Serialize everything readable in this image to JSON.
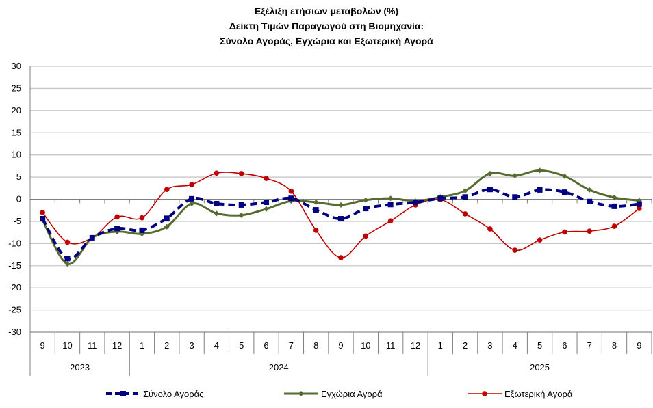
{
  "chart_data": {
    "type": "line",
    "title": [
      "Εξέλιξη ετήσιων μεταβολών (%)",
      "Δείκτη Τιμών Παραγωγού στη Βιομηχανία:",
      "Σύνολο Αγοράς, Εγχώρια και Εξωτερική Αγορά"
    ],
    "categories": [
      "9",
      "10",
      "11",
      "12",
      "1",
      "2",
      "3",
      "4",
      "5",
      "6",
      "7",
      "8",
      "9",
      "10",
      "11",
      "12",
      "1",
      "2",
      "3",
      "4",
      "5",
      "6",
      "7",
      "8",
      "9"
    ],
    "years": [
      {
        "label": "2023",
        "span": 4
      },
      {
        "label": "2024",
        "span": 12
      },
      {
        "label": "2025",
        "span": 9
      }
    ],
    "ylim": [
      -30,
      30
    ],
    "yticks": [
      30,
      25,
      20,
      15,
      10,
      5,
      0,
      -5,
      -10,
      -15,
      -20,
      -25,
      -30
    ],
    "grid": true,
    "legend": "bottom",
    "series": [
      {
        "name": "Σύνολο Αγοράς",
        "color": "#000080",
        "style": "dashed",
        "marker": "square",
        "values": [
          -4.4,
          -13.4,
          -8.7,
          -6.6,
          -7.0,
          -4.3,
          0.1,
          -1.0,
          -1.3,
          -0.7,
          0.2,
          -2.4,
          -4.4,
          -2.1,
          -1.2,
          -0.7,
          0.2,
          0.5,
          2.2,
          0.5,
          2.1,
          1.6,
          -0.5,
          -1.6,
          -1.1
        ]
      },
      {
        "name": "Εγχώρια Αγορά",
        "color": "#556B2F",
        "style": "solid",
        "marker": "diamond",
        "values": [
          -4.7,
          -14.6,
          -8.7,
          -7.3,
          -7.8,
          -6.2,
          -1.0,
          -3.2,
          -3.6,
          -2.2,
          -0.4,
          -0.7,
          -1.3,
          -0.2,
          0.2,
          -0.4,
          0.5,
          1.9,
          5.8,
          5.3,
          6.5,
          5.2,
          2.1,
          0.4,
          -0.3
        ]
      },
      {
        "name": "Εξωτερική Αγορά",
        "color": "#C00000",
        "style": "solid",
        "marker": "circle",
        "values": [
          -3.0,
          -9.7,
          -8.7,
          -4.0,
          -4.2,
          2.2,
          3.3,
          5.9,
          5.8,
          4.7,
          1.8,
          -7.0,
          -13.2,
          -8.3,
          -4.9,
          -1.3,
          -0.1,
          -3.3,
          -6.7,
          -11.5,
          -9.2,
          -7.4,
          -7.2,
          -6.1,
          -2.1
        ]
      }
    ]
  }
}
